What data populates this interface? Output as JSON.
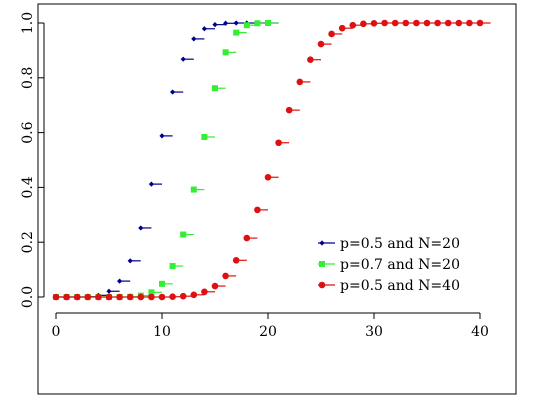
{
  "chart_data": {
    "type": "scatter",
    "title": "",
    "xlabel": "",
    "ylabel": "",
    "xlim": [
      0,
      40
    ],
    "ylim": [
      0,
      1
    ],
    "x_ticks": [
      "0",
      "10",
      "20",
      "30",
      "40"
    ],
    "y_ticks": [
      "0.0",
      "0.2",
      "0.4",
      "0.6",
      "0.8",
      "1.0"
    ],
    "grid": false,
    "legend_position": "bottom-right",
    "style": "step-cdf",
    "series": [
      {
        "name": "p=0.5 and N=20",
        "color": "#00008b",
        "marker": "diamond",
        "x": [
          0,
          1,
          2,
          3,
          4,
          5,
          6,
          7,
          8,
          9,
          10,
          11,
          12,
          13,
          14,
          15,
          16,
          17,
          18,
          19,
          20
        ],
        "values": [
          0.0,
          0.0,
          0.0,
          0.001,
          0.006,
          0.021,
          0.058,
          0.132,
          0.252,
          0.412,
          0.588,
          0.748,
          0.868,
          0.942,
          0.979,
          0.994,
          0.999,
          1.0,
          1.0,
          1.0,
          1.0
        ]
      },
      {
        "name": "p=0.7 and N=20",
        "color": "#33ee33",
        "marker": "square",
        "x": [
          0,
          1,
          2,
          3,
          4,
          5,
          6,
          7,
          8,
          9,
          10,
          11,
          12,
          13,
          14,
          15,
          16,
          17,
          18,
          19,
          20
        ],
        "values": [
          0.0,
          0.0,
          0.0,
          0.0,
          0.0,
          0.0,
          0.0,
          0.001,
          0.005,
          0.017,
          0.048,
          0.113,
          0.228,
          0.392,
          0.584,
          0.762,
          0.893,
          0.965,
          0.992,
          0.999,
          1.0
        ]
      },
      {
        "name": "p=0.5 and N=40",
        "color": "#dd1111",
        "marker": "circle",
        "x": [
          0,
          1,
          2,
          3,
          4,
          5,
          6,
          7,
          8,
          9,
          10,
          11,
          12,
          13,
          14,
          15,
          16,
          17,
          18,
          19,
          20,
          21,
          22,
          23,
          24,
          25,
          26,
          27,
          28,
          29,
          30,
          31,
          32,
          33,
          34,
          35,
          36,
          37,
          38,
          39,
          40
        ],
        "values": [
          0.0,
          0.0,
          0.0,
          0.0,
          0.0,
          0.0,
          0.0,
          0.0,
          0.0,
          0.0,
          0.0,
          0.001,
          0.003,
          0.008,
          0.019,
          0.04,
          0.077,
          0.134,
          0.215,
          0.318,
          0.437,
          0.563,
          0.682,
          0.785,
          0.866,
          0.923,
          0.96,
          0.981,
          0.992,
          0.997,
          0.999,
          1.0,
          1.0,
          1.0,
          1.0,
          1.0,
          1.0,
          1.0,
          1.0,
          1.0,
          1.0
        ]
      }
    ]
  }
}
